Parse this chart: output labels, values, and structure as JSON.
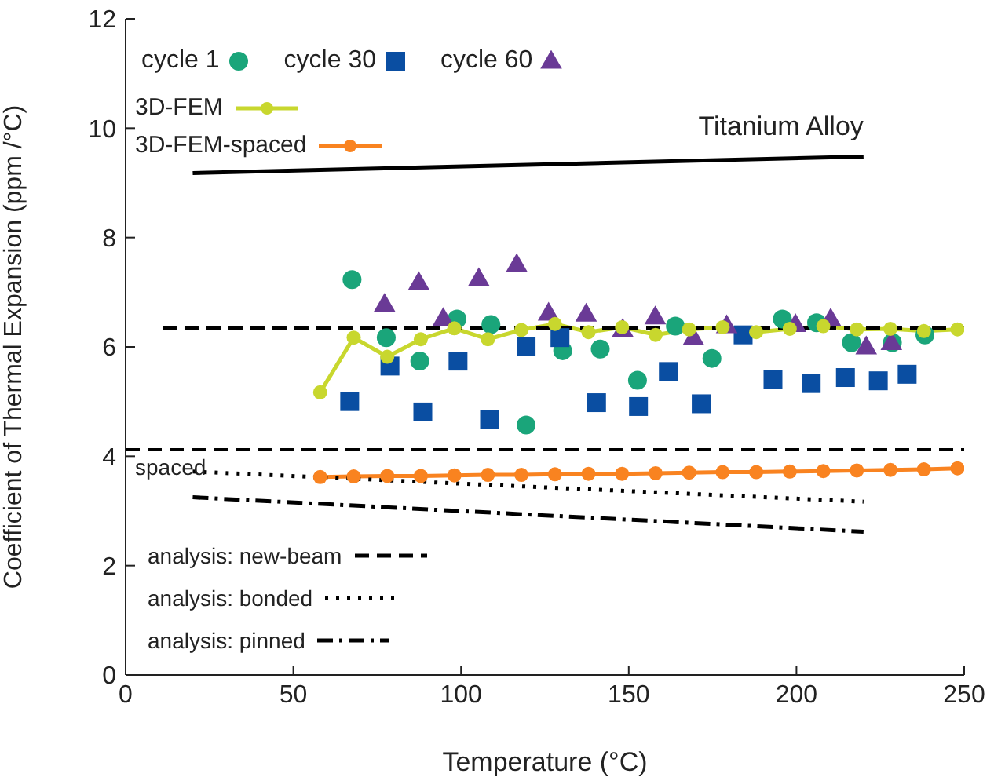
{
  "chart_data": {
    "type": "scatter",
    "xlabel": "Temperature (°C)",
    "ylabel": "Coefficient of Thermal Expansion (ppm /°C)",
    "xlim": [
      0,
      250
    ],
    "xticks": [
      0,
      50,
      100,
      150,
      200,
      250
    ],
    "ylim": [
      0,
      12
    ],
    "yticks": [
      0,
      2,
      4,
      6,
      8,
      10,
      12
    ],
    "grid": false,
    "legend": "left",
    "series": [
      {
        "name": "cycle 1",
        "marker": "circle",
        "color": "#1aa57a",
        "x": [
          67.5,
          77.7,
          87.7,
          98.8,
          108.9,
          119.4,
          130.3,
          141.5,
          152.6,
          163.9,
          174.8,
          195.8,
          206,
          216.4,
          228.6,
          238.3
        ],
        "values": [
          7.23,
          6.17,
          5.74,
          6.51,
          6.41,
          4.57,
          5.93,
          5.96,
          5.39,
          6.38,
          5.79,
          6.51,
          6.44,
          6.08,
          6.08,
          6.22
        ]
      },
      {
        "name": "cycle 30",
        "marker": "square",
        "color": "#0a4ea2",
        "x": [
          66.8,
          78.8,
          88.6,
          99.1,
          108.5,
          119.4,
          129.5,
          140.4,
          152.9,
          161.8,
          171.6,
          184.1,
          193,
          204.4,
          214.6,
          224.4,
          233
        ],
        "values": [
          5.0,
          5.65,
          4.81,
          5.74,
          4.67,
          6.0,
          6.17,
          4.98,
          4.91,
          5.55,
          4.96,
          6.22,
          5.41,
          5.33,
          5.44,
          5.38,
          5.5
        ]
      },
      {
        "name": "cycle 60",
        "marker": "triangle",
        "color": "#6a3a96",
        "x": [
          77.2,
          87.4,
          94.7,
          105.3,
          116.6,
          126.1,
          137.3,
          148.2,
          157.9,
          169.3,
          179.2,
          199.7,
          210.2,
          220.8,
          228.3
        ],
        "values": [
          6.78,
          7.18,
          6.52,
          7.25,
          7.51,
          6.62,
          6.6,
          6.32,
          6.55,
          6.17,
          6.39,
          6.41,
          6.51,
          6.0,
          6.08
        ]
      },
      {
        "name": "3D-FEM",
        "type": "line",
        "marker": "circle",
        "line_style": "solid",
        "color": "#c8d72e",
        "x": [
          58,
          68,
          78,
          88,
          98,
          108,
          118,
          128,
          138,
          148,
          158,
          168,
          178,
          188,
          198,
          208,
          218,
          228,
          238,
          248
        ],
        "values": [
          5.17,
          6.17,
          5.82,
          6.14,
          6.34,
          6.14,
          6.31,
          6.42,
          6.27,
          6.36,
          6.22,
          6.32,
          6.36,
          6.27,
          6.33,
          6.38,
          6.32,
          6.33,
          6.29,
          6.32
        ]
      },
      {
        "name": "3D-FEM-spaced",
        "type": "line",
        "marker": "circle",
        "line_style": "solid",
        "color": "#f98320",
        "x": [
          58,
          68,
          78,
          88,
          98,
          108,
          118,
          128,
          138,
          148,
          158,
          168,
          178,
          188,
          198,
          208,
          218,
          228,
          238,
          248
        ],
        "values": [
          3.62,
          3.63,
          3.64,
          3.64,
          3.65,
          3.66,
          3.66,
          3.67,
          3.68,
          3.68,
          3.69,
          3.7,
          3.71,
          3.71,
          3.72,
          3.73,
          3.74,
          3.75,
          3.76,
          3.78
        ]
      },
      {
        "name": "Titanium Alloy",
        "type": "line",
        "marker": "none",
        "line_style": "solid",
        "color": "#000000",
        "x": [
          20,
          220
        ],
        "values": [
          9.18,
          9.48
        ]
      },
      {
        "name": "analysis: new-beam",
        "type": "line",
        "marker": "none",
        "line_style": "dashed",
        "color": "#000000",
        "x": [
          11,
          250
        ],
        "values": [
          6.35,
          6.35
        ]
      },
      {
        "name": "analysis: bonded",
        "type": "line",
        "marker": "none",
        "line_style": "dotted",
        "color": "#000000",
        "x": [
          20,
          220
        ],
        "values": [
          3.72,
          3.17
        ]
      },
      {
        "name": "analysis: pinned",
        "type": "line",
        "marker": "none",
        "line_style": "dashdot",
        "color": "#000000",
        "x": [
          20,
          220
        ],
        "values": [
          3.25,
          2.62
        ]
      }
    ],
    "ref_lines": [
      {
        "axis": "y",
        "value": 4.12,
        "label": "spaced",
        "line_style": "dashed",
        "color": "#000000"
      }
    ]
  }
}
